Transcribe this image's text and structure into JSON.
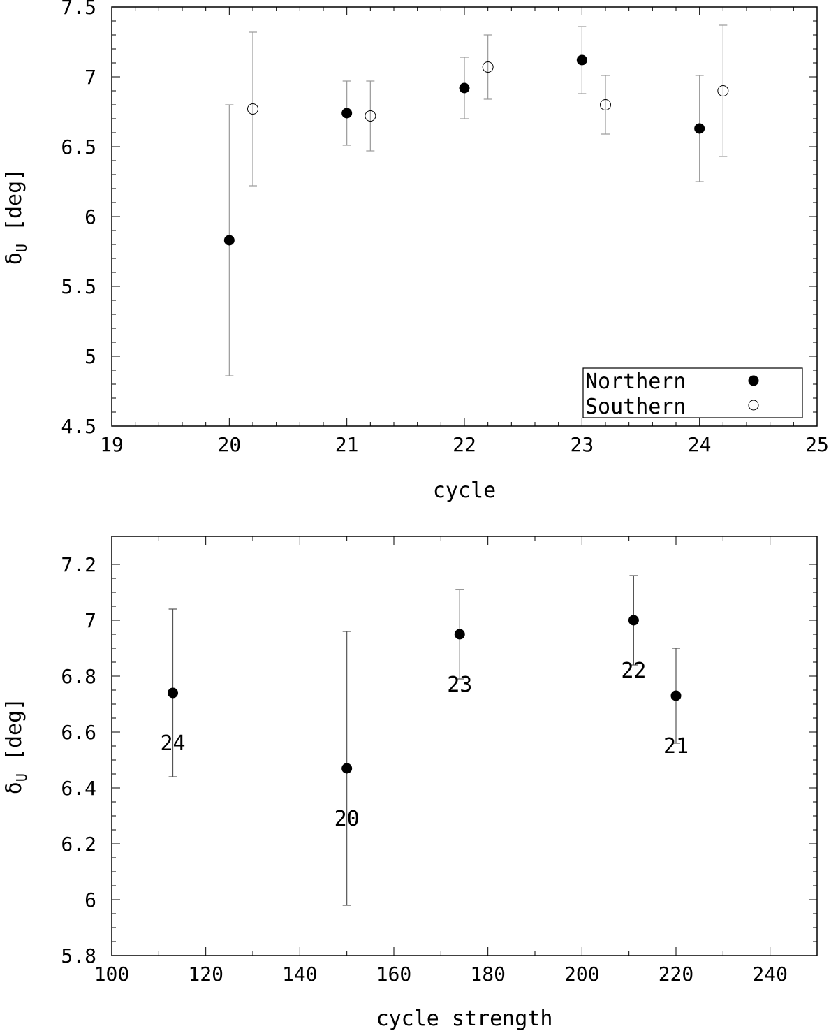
{
  "chart_data": [
    {
      "type": "scatter",
      "title": "",
      "xlabel": "cycle",
      "ylabel_main": "δ",
      "ylabel_sub": "U",
      "ylabel_unit": "[deg]",
      "xlim": [
        19,
        25
      ],
      "ylim": [
        4.5,
        7.5
      ],
      "xticks": [
        19,
        20,
        21,
        22,
        23,
        24,
        25
      ],
      "xtick_labels": [
        "19",
        "20",
        "21",
        "22",
        "23",
        "24",
        "25"
      ],
      "yticks": [
        4.5,
        5,
        5.5,
        6,
        6.5,
        7,
        7.5
      ],
      "ytick_labels": [
        "4.5",
        "5",
        "5.5",
        "6",
        "6.5",
        "7",
        "7.5"
      ],
      "legend_position": "bottom-right",
      "series": [
        {
          "name": "Northern",
          "marker": "filled-circle",
          "points": [
            {
              "x": 20.0,
              "y": 5.83,
              "err_low": 4.86,
              "err_high": 6.8
            },
            {
              "x": 21.0,
              "y": 6.74,
              "err_low": 6.51,
              "err_high": 6.97
            },
            {
              "x": 22.0,
              "y": 6.92,
              "err_low": 6.7,
              "err_high": 7.14
            },
            {
              "x": 23.0,
              "y": 7.12,
              "err_low": 6.88,
              "err_high": 7.36
            },
            {
              "x": 24.0,
              "y": 6.63,
              "err_low": 6.25,
              "err_high": 7.01
            }
          ]
        },
        {
          "name": "Southern",
          "marker": "open-circle",
          "points": [
            {
              "x": 20.2,
              "y": 6.77,
              "err_low": 6.22,
              "err_high": 7.32
            },
            {
              "x": 21.2,
              "y": 6.72,
              "err_low": 6.47,
              "err_high": 6.97
            },
            {
              "x": 22.2,
              "y": 7.07,
              "err_low": 6.84,
              "err_high": 7.3
            },
            {
              "x": 23.2,
              "y": 6.8,
              "err_low": 6.59,
              "err_high": 7.01
            },
            {
              "x": 24.2,
              "y": 6.9,
              "err_low": 6.43,
              "err_high": 7.37
            }
          ]
        }
      ]
    },
    {
      "type": "scatter",
      "title": "",
      "xlabel": "cycle strength",
      "ylabel_main": "δ",
      "ylabel_sub": "U",
      "ylabel_unit": "[deg]",
      "xlim": [
        100,
        250
      ],
      "ylim": [
        5.8,
        7.3
      ],
      "xticks": [
        100,
        120,
        140,
        160,
        180,
        200,
        220,
        240
      ],
      "xtick_labels": [
        "100",
        "120",
        "140",
        "160",
        "180",
        "200",
        "220",
        "240"
      ],
      "yticks": [
        5.8,
        6.0,
        6.2,
        6.4,
        6.6,
        6.8,
        7.0,
        7.2
      ],
      "ytick_labels": [
        "5.8",
        "6",
        "6.2",
        "6.4",
        "6.6",
        "6.8",
        "7",
        "7.2"
      ],
      "series": [
        {
          "marker": "filled-circle",
          "points": [
            {
              "label": "24",
              "x": 113.0,
              "y": 6.74,
              "err_low": 6.44,
              "err_high": 7.04
            },
            {
              "label": "20",
              "x": 150.0,
              "y": 6.47,
              "err_low": 5.98,
              "err_high": 6.96
            },
            {
              "label": "23",
              "x": 174.0,
              "y": 6.95,
              "err_low": 6.79,
              "err_high": 7.11
            },
            {
              "label": "22",
              "x": 211.0,
              "y": 7.0,
              "err_low": 6.84,
              "err_high": 7.16
            },
            {
              "label": "21",
              "x": 220.0,
              "y": 6.73,
              "err_low": 6.56,
              "err_high": 6.9
            }
          ]
        }
      ]
    }
  ]
}
